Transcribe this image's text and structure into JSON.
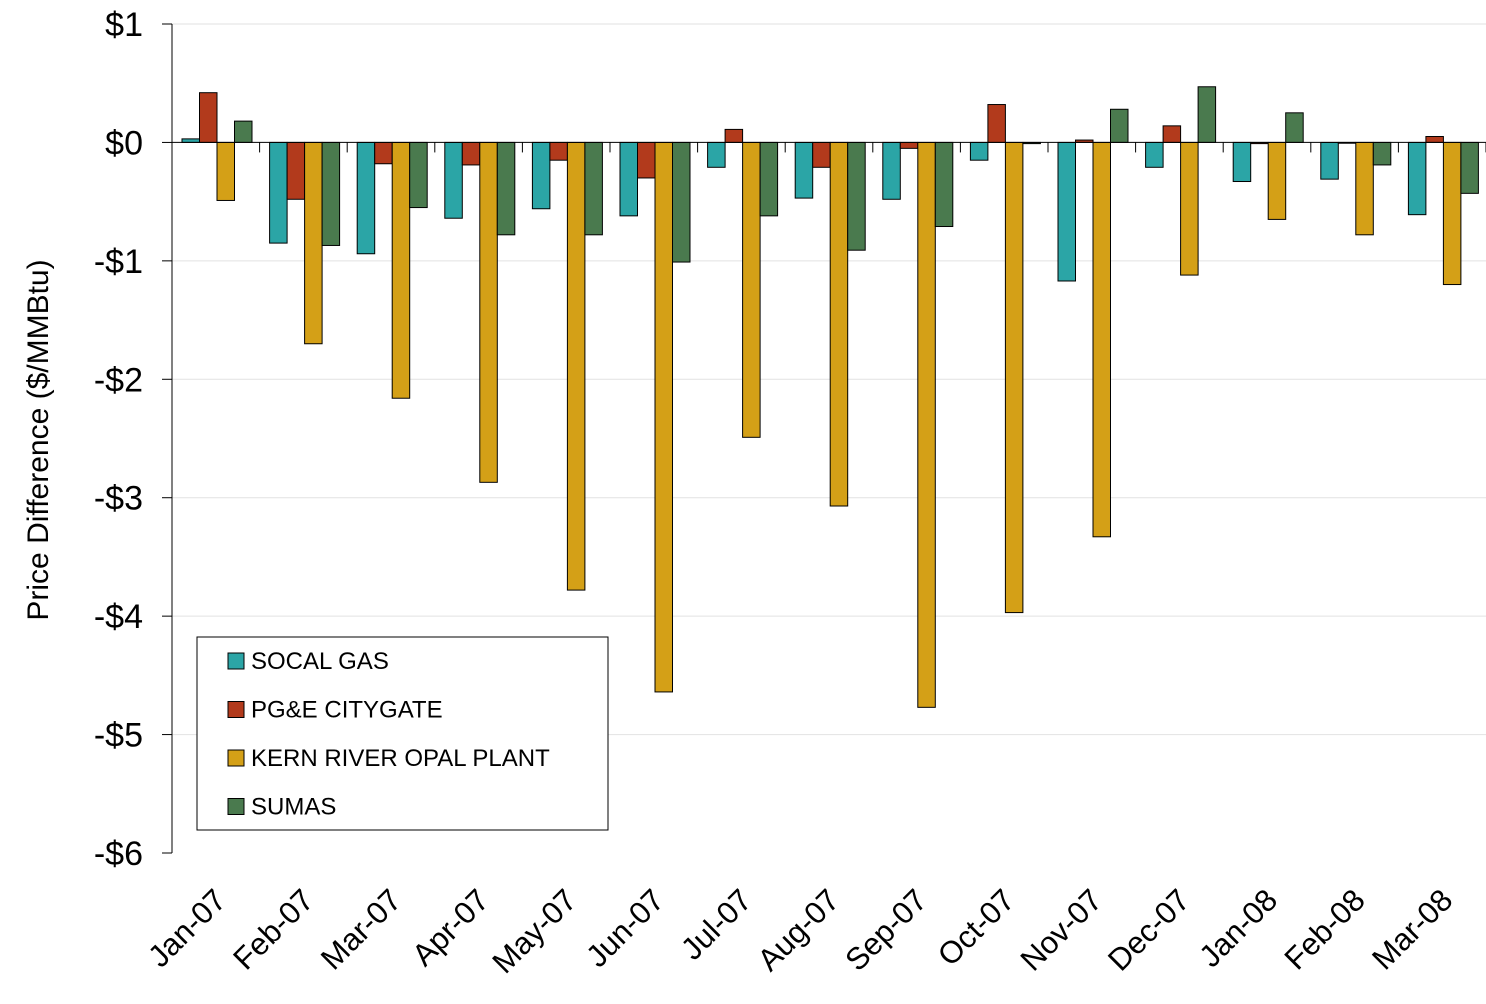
{
  "chart_data": {
    "type": "bar",
    "title": "",
    "xlabel": "",
    "ylabel": "Price Difference  ($/MMBtu)",
    "ylim": [
      -6,
      1
    ],
    "yticks": [
      1,
      0,
      -1,
      -2,
      -3,
      -4,
      -5,
      -6
    ],
    "ytick_labels": [
      "$1",
      "$0",
      "-$1",
      "-$2",
      "-$3",
      "-$4",
      "-$5",
      "-$6"
    ],
    "grid": "horizontal",
    "legend_position": "bottom-left",
    "categories": [
      "Jan-07",
      "Feb-07",
      "Mar-07",
      "Apr-07",
      "May-07",
      "Jun-07",
      "Jul-07",
      "Aug-07",
      "Sep-07",
      "Oct-07",
      "Nov-07",
      "Dec-07",
      "Jan-08",
      "Feb-08",
      "Mar-08"
    ],
    "series": [
      {
        "name": "SOCAL GAS",
        "color": "#2BA5A6",
        "values": [
          0.03,
          -0.85,
          -0.94,
          -0.64,
          -0.56,
          -0.62,
          -0.21,
          -0.47,
          -0.48,
          -0.15,
          -1.17,
          -0.21,
          -0.33,
          -0.31,
          -0.61
        ]
      },
      {
        "name": "PG&E CITYGATE",
        "color": "#B23A1C",
        "values": [
          0.42,
          -0.48,
          -0.18,
          -0.19,
          -0.15,
          -0.3,
          0.11,
          -0.21,
          -0.05,
          0.32,
          0.02,
          0.14,
          -0.01,
          0.0,
          0.05
        ]
      },
      {
        "name": "KERN RIVER OPAL PLANT",
        "color": "#D4A017",
        "values": [
          -0.49,
          -1.7,
          -2.16,
          -2.87,
          -3.78,
          -4.64,
          -2.49,
          -3.07,
          -4.77,
          -3.97,
          -3.33,
          -1.12,
          -0.65,
          -0.78,
          -1.2
        ]
      },
      {
        "name": "SUMAS",
        "color": "#4A7A4E",
        "values": [
          0.18,
          -0.87,
          -0.55,
          -0.78,
          -0.78,
          -1.01,
          -0.62,
          -0.91,
          -0.71,
          -0.01,
          0.28,
          0.47,
          0.25,
          -0.19,
          -0.43
        ]
      }
    ]
  }
}
